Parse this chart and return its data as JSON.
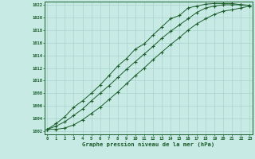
{
  "title": "Graphe pression niveau de la mer (hPa)",
  "background_color": "#c8eae4",
  "grid_color": "#a8d4ce",
  "line_color": "#1a5c2a",
  "x_ticks": [
    0,
    1,
    2,
    3,
    4,
    5,
    6,
    7,
    8,
    9,
    10,
    11,
    12,
    13,
    14,
    15,
    16,
    17,
    18,
    19,
    20,
    21,
    22,
    23
  ],
  "ylim": [
    1002,
    1022
  ],
  "y_ticks": [
    1002,
    1004,
    1006,
    1008,
    1010,
    1012,
    1014,
    1016,
    1018,
    1020,
    1022
  ],
  "series1": [
    1002.3,
    1003.2,
    1004.3,
    1005.8,
    1006.8,
    1008.0,
    1009.3,
    1010.8,
    1012.3,
    1013.5,
    1015.0,
    1015.8,
    1017.2,
    1018.5,
    1019.8,
    1020.3,
    1021.5,
    1021.8,
    1022.1,
    1022.2,
    1022.2,
    1022.2,
    1022.0,
    1021.9
  ],
  "series2": [
    1002.3,
    1002.8,
    1003.5,
    1004.5,
    1005.5,
    1006.8,
    1008.0,
    1009.2,
    1010.5,
    1011.8,
    1013.0,
    1014.2,
    1015.4,
    1016.7,
    1017.8,
    1018.8,
    1019.8,
    1020.8,
    1021.5,
    1021.8,
    1022.0,
    1022.0,
    1022.0,
    1021.9
  ],
  "series3": [
    1002.3,
    1002.3,
    1002.5,
    1003.0,
    1003.8,
    1004.8,
    1005.8,
    1007.0,
    1008.2,
    1009.5,
    1010.8,
    1012.0,
    1013.3,
    1014.5,
    1015.7,
    1016.8,
    1018.0,
    1019.0,
    1019.8,
    1020.5,
    1021.0,
    1021.2,
    1021.5,
    1021.8
  ]
}
